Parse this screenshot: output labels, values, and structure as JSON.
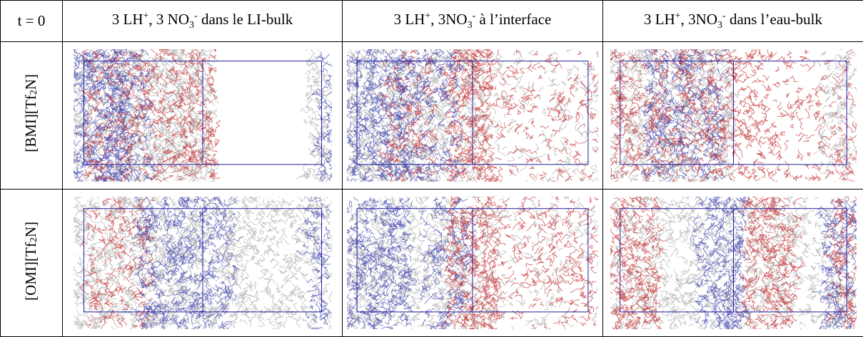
{
  "table": {
    "corner": "t = 0",
    "columns": [
      {
        "parts": [
          "3 LH",
          "+",
          ", 3 NO",
          "3",
          "-",
          " dans le LI-bulk"
        ]
      },
      {
        "parts": [
          "3 LH",
          "+",
          ", 3NO",
          "3",
          "-",
          " à l’interface"
        ]
      },
      {
        "parts": [
          "3 LH",
          "+",
          ", 3NO",
          "3",
          "-",
          " dans l’eau-bulk"
        ]
      }
    ],
    "rows": [
      {
        "parts": [
          "[BMI][Tf",
          "2",
          "N]"
        ]
      },
      {
        "parts": [
          "[OMI][Tf",
          "2",
          "N]"
        ]
      }
    ]
  }
}
